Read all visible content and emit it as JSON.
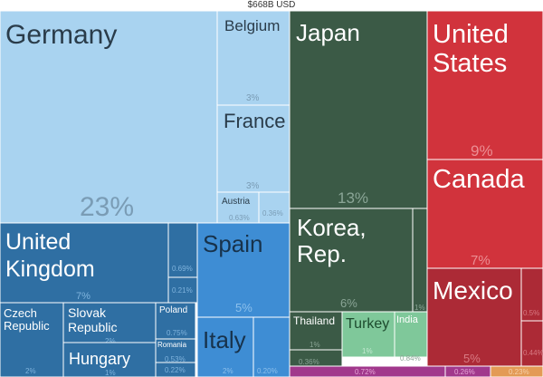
{
  "chart_data": {
    "type": "treemap",
    "title": "$668B USD",
    "tiles": [
      {
        "label": "Germany",
        "value": "23%",
        "region": "europe"
      },
      {
        "label": "Belgium",
        "value": "3%",
        "region": "europe"
      },
      {
        "label": "France",
        "value": "3%",
        "region": "europe"
      },
      {
        "label": "Austria",
        "value": "0.63%",
        "region": "europe"
      },
      {
        "label": "",
        "value": "0.36%",
        "region": "europe"
      },
      {
        "label": "United Kingdom",
        "value": "7%",
        "region": "europe-dark"
      },
      {
        "label": "",
        "value": "0.69%",
        "region": "europe-dark"
      },
      {
        "label": "",
        "value": "0.21%",
        "region": "europe-dark"
      },
      {
        "label": "Czech Republic",
        "value": "2%",
        "region": "europe-dark"
      },
      {
        "label": "Slovak Republic",
        "value": "2%",
        "region": "europe-dark"
      },
      {
        "label": "Hungary",
        "value": "1%",
        "region": "europe-dark"
      },
      {
        "label": "Poland",
        "value": "0.75%",
        "region": "europe-dark"
      },
      {
        "label": "Romania",
        "value": "0.53%",
        "region": "europe-dark"
      },
      {
        "label": "",
        "value": "0.22%",
        "region": "europe-dark"
      },
      {
        "label": "Spain",
        "value": "5%",
        "region": "europe-south"
      },
      {
        "label": "Italy",
        "value": "2%",
        "region": "europe-south"
      },
      {
        "label": "",
        "value": "0.20%",
        "region": "europe-south"
      },
      {
        "label": "Japan",
        "value": "13%",
        "region": "asia"
      },
      {
        "label": "Korea, Rep.",
        "value": "6%",
        "region": "asia"
      },
      {
        "label": "Thailand",
        "value": "1%",
        "region": "asia"
      },
      {
        "label": "",
        "value": "0.36%",
        "region": "asia"
      },
      {
        "label": "Turkey",
        "value": "1%",
        "region": "asia-green"
      },
      {
        "label": "India",
        "value": "0.84%",
        "region": "asia-green"
      },
      {
        "label": "",
        "value": "1%",
        "region": "asia"
      },
      {
        "label": "United States",
        "value": "9%",
        "region": "americas"
      },
      {
        "label": "Canada",
        "value": "7%",
        "region": "americas"
      },
      {
        "label": "Mexico",
        "value": "5%",
        "region": "americas-dark"
      },
      {
        "label": "",
        "value": "0.5%",
        "region": "americas-dark"
      },
      {
        "label": "",
        "value": "0.44%",
        "region": "americas-dark"
      },
      {
        "label": "",
        "value": "0.72%",
        "region": "other-purple"
      },
      {
        "label": "",
        "value": "0.26%",
        "region": "other-purple"
      },
      {
        "label": "",
        "value": "0.23%",
        "region": "other-orange"
      }
    ],
    "colors": {
      "europe": "#a9d3f0",
      "europe-dark": "#2f6fa3",
      "europe-south": "#3e8dd4",
      "asia": "#3b5a46",
      "asia-green": "#7fc89a",
      "americas": "#d1333c",
      "americas-dark": "#ac2a36",
      "other-purple": "#a1388c",
      "other-orange": "#e39a55"
    }
  }
}
